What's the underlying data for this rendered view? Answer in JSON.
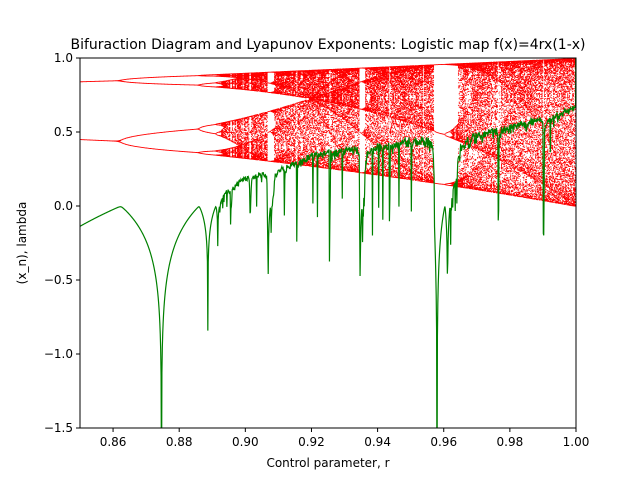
{
  "chart_data": {
    "type": "line",
    "title": "Bifuraction Diagram and Lyapunov Exponents: Logistic map f(x)=4rx(1-x)",
    "xlabel": "Control parameter, r",
    "ylabel": "(x_n), lambda",
    "xlim": [
      0.85,
      1.0
    ],
    "ylim": [
      -1.5,
      1.0
    ],
    "xticks": [
      "0.86",
      "0.88",
      "0.90",
      "0.92",
      "0.94",
      "0.96",
      "0.98",
      "1.00"
    ],
    "xtick_values": [
      0.86,
      0.88,
      0.9,
      0.92,
      0.94,
      0.96,
      0.98,
      1.0
    ],
    "yticks": [
      "−1.5",
      "−1.0",
      "−0.5",
      "0.0",
      "0.5",
      "1.0"
    ],
    "ytick_values": [
      -1.5,
      -1.0,
      -0.5,
      0.0,
      0.5,
      1.0
    ],
    "grid": false,
    "series": [
      {
        "kind": "bifurcation-scatter",
        "color": "#ff0000",
        "r_range": [
          0.85,
          1.0
        ],
        "r_samples": 600,
        "x0": 0.5,
        "transient_iterations": 200,
        "plotted_iterations": 120
      },
      {
        "kind": "lyapunov-line",
        "color": "#008000",
        "r_range": [
          0.85,
          1.0
        ],
        "r_samples": 1200,
        "x0": 0.5,
        "transient_iterations": 100,
        "averaged_iterations": 400
      }
    ]
  }
}
